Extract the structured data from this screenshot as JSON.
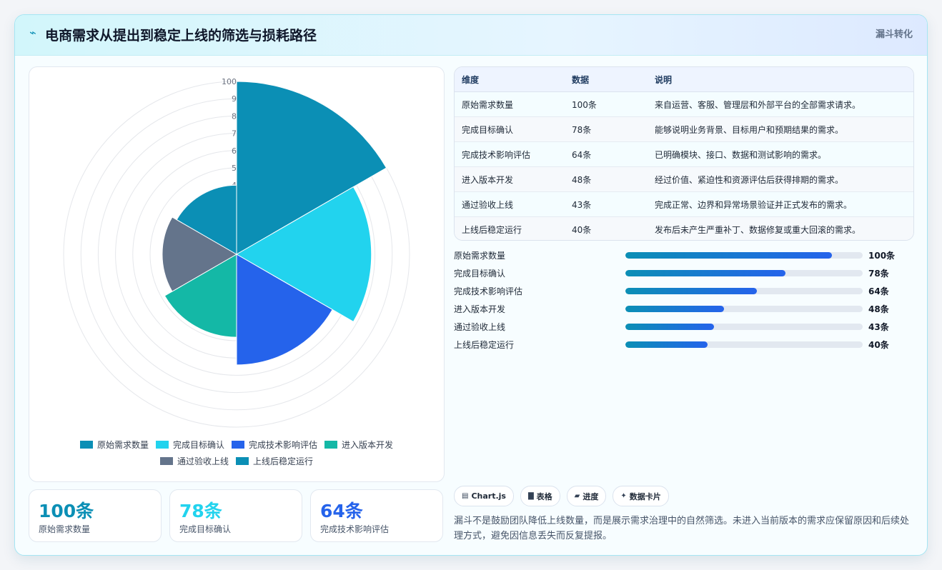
{
  "header": {
    "icon": "bolt-icon",
    "title": "电商需求从提出到稳定上线的筛选与损耗路径",
    "tag": "漏斗转化"
  },
  "chart_data": {
    "type": "polarArea",
    "title": "",
    "categories": [
      "原始需求数量",
      "完成目标确认",
      "完成技术影响评估",
      "进入版本开发",
      "通过验收上线",
      "上线后稳定运行"
    ],
    "values": [
      100,
      78,
      64,
      48,
      43,
      40
    ],
    "colors": [
      "#0b8fb5",
      "#22d3ee",
      "#2563eb",
      "#14b8a6",
      "#64748b",
      "#0b8fb5"
    ],
    "r_ticks": [
      "4",
      "5",
      "6",
      "7",
      "8",
      "9",
      "100"
    ],
    "rlim": [
      0,
      100
    ],
    "legend_position": "bottom"
  },
  "legend": [
    {
      "label": "原始需求数量",
      "color": "#0b8fb5"
    },
    {
      "label": "完成目标确认",
      "color": "#22d3ee"
    },
    {
      "label": "完成技术影响评估",
      "color": "#2563eb"
    },
    {
      "label": "进入版本开发",
      "color": "#14b8a6"
    },
    {
      "label": "通过验收上线",
      "color": "#64748b"
    },
    {
      "label": "上线后稳定运行",
      "color": "#0b8fb5"
    }
  ],
  "stats": [
    {
      "value": "100条",
      "label": "原始需求数量",
      "color": "#0b8fb5"
    },
    {
      "value": "78条",
      "label": "完成目标确认",
      "color": "#22d3ee"
    },
    {
      "value": "64条",
      "label": "完成技术影响评估",
      "color": "#2563eb"
    }
  ],
  "table": {
    "headers": [
      "维度",
      "数据",
      "说明"
    ],
    "rows": [
      [
        "原始需求数量",
        "100条",
        "来自运营、客服、管理层和外部平台的全部需求请求。"
      ],
      [
        "完成目标确认",
        "78条",
        "能够说明业务背景、目标用户和预期结果的需求。"
      ],
      [
        "完成技术影响评估",
        "64条",
        "已明确模块、接口、数据和测试影响的需求。"
      ],
      [
        "进入版本开发",
        "48条",
        "经过价值、紧迫性和资源评估后获得排期的需求。"
      ],
      [
        "通过验收上线",
        "43条",
        "完成正常、边界和异常场景验证并正式发布的需求。"
      ],
      [
        "上线后稳定运行",
        "40条",
        "发布后未产生严重补丁、数据修复或重大回滚的需求。"
      ]
    ]
  },
  "bars": [
    {
      "label": "原始需求数量",
      "value": "100条",
      "pct": 87
    },
    {
      "label": "完成目标确认",
      "value": "78条",
      "pct": 67.6
    },
    {
      "label": "完成技术影响评估",
      "value": "64条",
      "pct": 55.5
    },
    {
      "label": "进入版本开发",
      "value": "48条",
      "pct": 41.6
    },
    {
      "label": "通过验收上线",
      "value": "43条",
      "pct": 37.3
    },
    {
      "label": "上线后稳定运行",
      "value": "40条",
      "pct": 34.7
    }
  ],
  "chips": [
    {
      "icon": "chart-icon",
      "glyph": "▤",
      "label": "Chart.js"
    },
    {
      "icon": "table-icon",
      "glyph": "▇",
      "label": "表格"
    },
    {
      "icon": "progress-icon",
      "glyph": "▰",
      "label": "进度"
    },
    {
      "icon": "sparkle-icon",
      "glyph": "✦",
      "label": "数据卡片"
    }
  ],
  "note": "漏斗不是鼓励团队降低上线数量，而是展示需求治理中的自然筛选。未进入当前版本的需求应保留原因和后续处理方式，避免因信息丢失而反复提报。"
}
